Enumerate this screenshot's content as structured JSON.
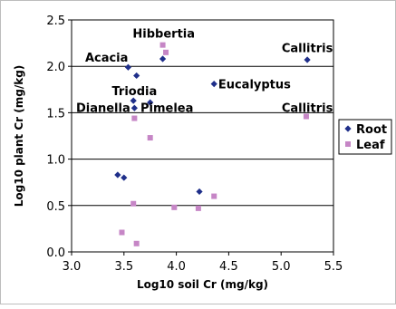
{
  "chart_data": {
    "type": "scatter",
    "xlabel": "Log10 soil Cr (mg/kg)",
    "ylabel": "Log10 plant Cr (mg/kg)",
    "xlim": [
      3.0,
      5.5
    ],
    "ylim": [
      0.0,
      2.5
    ],
    "xticks": [
      "3.0",
      "3.5",
      "4.0",
      "4.5",
      "5.0",
      "5.5"
    ],
    "yticks": [
      "0.0",
      "0.5",
      "1.0",
      "1.5",
      "2.0",
      "2.5"
    ],
    "grid": "horizontal",
    "legend_position": "right",
    "series": [
      {
        "name": "Root",
        "color": "#1f2f8a",
        "marker": "diamond",
        "points": [
          {
            "x": 3.54,
            "y": 1.99
          },
          {
            "x": 3.62,
            "y": 1.9
          },
          {
            "x": 3.87,
            "y": 2.08
          },
          {
            "x": 3.59,
            "y": 1.63
          },
          {
            "x": 3.6,
            "y": 1.55
          },
          {
            "x": 3.75,
            "y": 1.61
          },
          {
            "x": 4.36,
            "y": 1.81
          },
          {
            "x": 5.25,
            "y": 2.07
          },
          {
            "x": 3.44,
            "y": 0.83
          },
          {
            "x": 3.5,
            "y": 0.8
          },
          {
            "x": 4.22,
            "y": 0.65
          }
        ]
      },
      {
        "name": "Leaf",
        "color": "#c686c6",
        "marker": "square",
        "points": [
          {
            "x": 3.87,
            "y": 2.23
          },
          {
            "x": 3.9,
            "y": 2.15
          },
          {
            "x": 3.6,
            "y": 1.44
          },
          {
            "x": 3.75,
            "y": 1.23
          },
          {
            "x": 5.24,
            "y": 1.46
          },
          {
            "x": 3.59,
            "y": 0.52
          },
          {
            "x": 3.98,
            "y": 0.48
          },
          {
            "x": 4.21,
            "y": 0.47
          },
          {
            "x": 4.36,
            "y": 0.6
          },
          {
            "x": 3.48,
            "y": 0.21
          },
          {
            "x": 3.62,
            "y": 0.09
          }
        ]
      }
    ],
    "annotations": [
      {
        "text": "Hibbertia",
        "x": 3.88,
        "y": 2.36,
        "anchor": "middle"
      },
      {
        "text": "Acacia",
        "x": 3.54,
        "y": 2.1,
        "anchor": "end"
      },
      {
        "text": "Callitris",
        "x": 5.25,
        "y": 2.2,
        "anchor": "middle"
      },
      {
        "text": "Triodia",
        "x": 3.6,
        "y": 1.74,
        "anchor": "middle"
      },
      {
        "text": "Eucalyptus",
        "x": 4.4,
        "y": 1.81,
        "anchor": "start"
      },
      {
        "text": "Dianella",
        "x": 3.56,
        "y": 1.56,
        "anchor": "end"
      },
      {
        "text": "Pimelea",
        "x": 3.91,
        "y": 1.56,
        "anchor": "middle"
      },
      {
        "text": "Callitris",
        "x": 5.25,
        "y": 1.56,
        "anchor": "middle"
      }
    ]
  }
}
